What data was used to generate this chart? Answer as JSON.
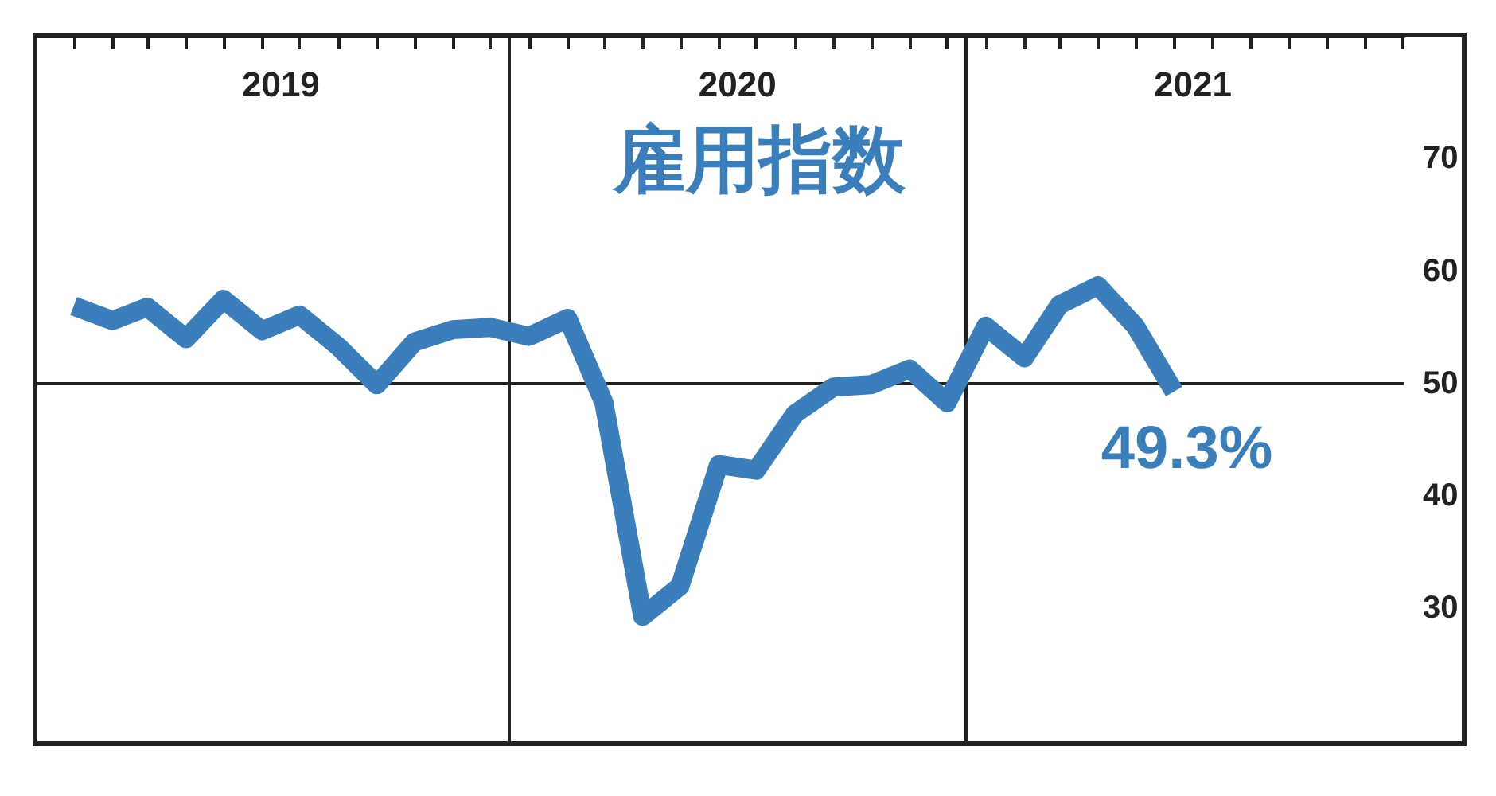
{
  "chart_data": {
    "type": "line",
    "title": "雇用指数",
    "color": "#3a7fbb",
    "line_style": "solid",
    "marker": "none",
    "x": [
      "2019-01",
      "2019-02",
      "2019-03",
      "2019-04",
      "2019-05",
      "2019-06",
      "2019-07",
      "2019-08",
      "2019-09",
      "2019-10",
      "2019-11",
      "2019-12",
      "2020-01",
      "2020-02",
      "2020-03",
      "2020-04",
      "2020-05",
      "2020-06",
      "2020-07",
      "2020-08",
      "2020-09",
      "2020-10",
      "2020-11",
      "2020-12",
      "2021-01",
      "2021-02",
      "2021-03",
      "2021-04",
      "2021-05",
      "2021-06"
    ],
    "values": [
      56.9,
      55.6,
      56.8,
      54.0,
      57.5,
      54.7,
      56.1,
      53.3,
      49.9,
      53.7,
      54.8,
      55.0,
      54.2,
      55.8,
      48.3,
      29.3,
      32.0,
      42.8,
      42.3,
      47.3,
      49.7,
      49.9,
      51.3,
      48.3,
      55.1,
      52.3,
      57.0,
      58.7,
      55.1,
      49.3
    ],
    "xlim": [
      "2018-12-01",
      "2021-12-02"
    ],
    "xticks": [
      {
        "value": "2019-01",
        "label": null
      },
      {
        "value": "2019-02",
        "label": null
      },
      {
        "value": "2019-03",
        "label": null
      },
      {
        "value": "2019-04",
        "label": null
      },
      {
        "value": "2019-05",
        "label": null
      },
      {
        "value": "2019-06",
        "label": null
      },
      {
        "value": "2019-07",
        "label": null
      },
      {
        "value": "2019-08",
        "label": null
      },
      {
        "value": "2019-09",
        "label": null
      },
      {
        "value": "2019-10",
        "label": null
      },
      {
        "value": "2019-11",
        "label": null
      },
      {
        "value": "2019-12",
        "label": null
      },
      {
        "value": "2020-01",
        "label": null
      },
      {
        "value": "2020-02",
        "label": null
      },
      {
        "value": "2020-03",
        "label": null
      },
      {
        "value": "2020-04",
        "label": null
      },
      {
        "value": "2020-05",
        "label": null
      },
      {
        "value": "2020-06",
        "label": null
      },
      {
        "value": "2020-07",
        "label": null
      },
      {
        "value": "2020-08",
        "label": null
      },
      {
        "value": "2020-09",
        "label": null
      },
      {
        "value": "2020-10",
        "label": null
      },
      {
        "value": "2020-11",
        "label": null
      },
      {
        "value": "2020-12",
        "label": null
      },
      {
        "value": "2021-01",
        "label": null
      },
      {
        "value": "2021-02",
        "label": null
      },
      {
        "value": "2021-03",
        "label": null
      },
      {
        "value": "2021-04",
        "label": null
      },
      {
        "value": "2021-05",
        "label": null
      },
      {
        "value": "2021-06",
        "label": null
      },
      {
        "value": "2021-07",
        "label": null
      },
      {
        "value": "2021-08",
        "label": null
      },
      {
        "value": "2021-09",
        "label": null
      },
      {
        "value": "2021-10",
        "label": null
      },
      {
        "value": "2021-11",
        "label": null
      },
      {
        "value": "2021-12",
        "label": null
      },
      {
        "value": "2019-06-16",
        "label": "2019"
      },
      {
        "value": "2020-06-16",
        "label": "2020"
      },
      {
        "value": "2021-06-16",
        "label": "2021"
      }
    ],
    "ylim": [
      18,
      81
    ],
    "yticks": [
      30,
      40,
      50,
      60,
      70
    ],
    "ref_lines": [
      {
        "axis": "y",
        "value": 50,
        "color": "#222222"
      },
      {
        "axis": "x",
        "value": "2019-12-16",
        "color": "#222222"
      },
      {
        "axis": "x",
        "value": "2020-12-16",
        "color": "#222222"
      }
    ],
    "annotations": [
      {
        "text": "49.3%",
        "x": "2021-06",
        "y": 49.3
      }
    ]
  }
}
